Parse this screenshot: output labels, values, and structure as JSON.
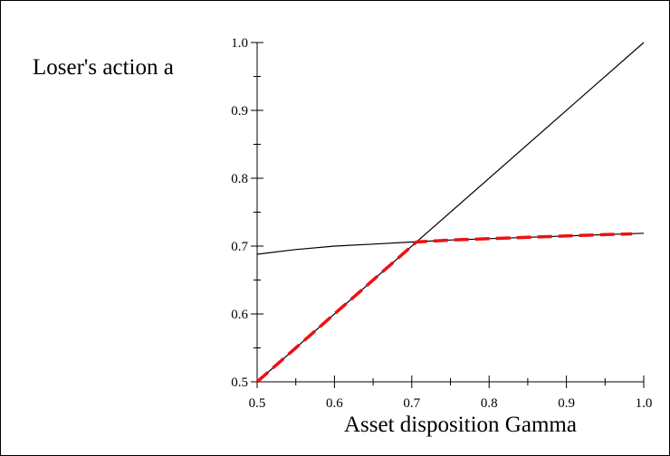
{
  "chart_data": {
    "type": "line",
    "title": "",
    "xlabel": "Asset disposition Gamma",
    "ylabel": "Loser's action a",
    "xlim": [
      0.5,
      1.0
    ],
    "ylim": [
      0.5,
      1.0
    ],
    "x_ticks": [
      0.5,
      0.6,
      0.7,
      0.8,
      0.9,
      1.0
    ],
    "x_tick_labels": [
      "0.5",
      "0.6",
      "0.7",
      "0.8",
      "0.9",
      "1.0"
    ],
    "y_ticks": [
      0.5,
      0.6,
      0.7,
      0.8,
      0.9,
      1.0
    ],
    "y_tick_labels": [
      "0.5",
      "0.6",
      "0.7",
      "0.8",
      "0.9",
      "1.0"
    ],
    "grid": false,
    "legend": "none",
    "series": [
      {
        "style": "solid",
        "color": "#000000",
        "x": [
          0.5,
          1.0
        ],
        "y": [
          0.5,
          1.0
        ]
      },
      {
        "style": "solid",
        "color": "#000000",
        "x": [
          0.5,
          0.55,
          0.6,
          0.65,
          0.7,
          0.75,
          0.8,
          0.85,
          0.9,
          0.95,
          1.0
        ],
        "y": [
          0.688,
          0.695,
          0.7,
          0.703,
          0.706,
          0.709,
          0.711,
          0.713,
          0.715,
          0.717,
          0.719
        ]
      },
      {
        "style": "dashed",
        "color": "#ee1111",
        "x": [
          0.5,
          0.55,
          0.6,
          0.65,
          0.706,
          0.75,
          0.8,
          0.85,
          0.9,
          0.95,
          0.985
        ],
        "y": [
          0.5,
          0.55,
          0.6,
          0.65,
          0.706,
          0.709,
          0.711,
          0.713,
          0.715,
          0.717,
          0.718
        ]
      }
    ]
  }
}
